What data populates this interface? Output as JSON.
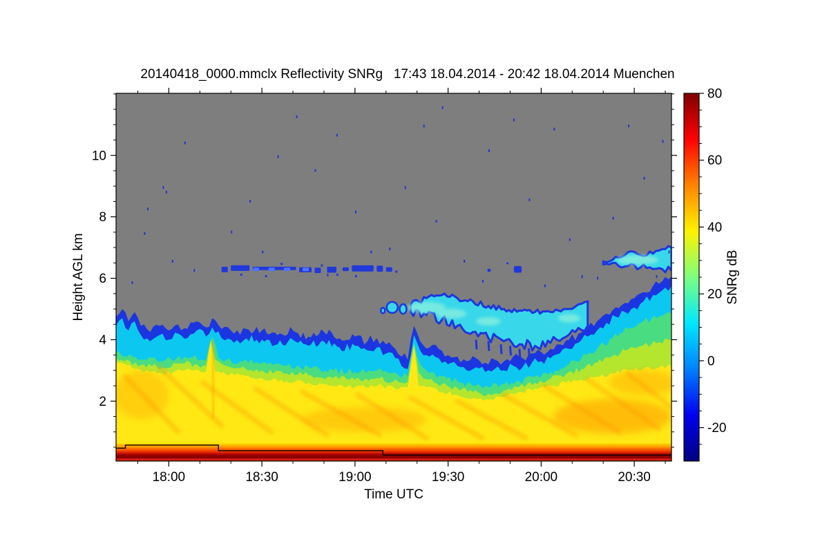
{
  "chart_data": {
    "type": "heatmap",
    "title": "20140418_0000.mmclx Reflectivity SNRg   17:43 18.04.2014 - 20:42 18.04.2014 Muenchen",
    "xlabel": "Time UTC",
    "ylabel": "Height AGL km",
    "legend_position": "right-colorbar",
    "grid": false,
    "x_axis": {
      "start_time": "17:43",
      "end_time": "20:42",
      "duration_min": 179,
      "major_ticks": [
        {
          "label": "18:00",
          "min": 17
        },
        {
          "label": "18:30",
          "min": 47
        },
        {
          "label": "19:00",
          "min": 77
        },
        {
          "label": "19:30",
          "min": 107
        },
        {
          "label": "20:00",
          "min": 137
        },
        {
          "label": "20:30",
          "min": 167
        }
      ],
      "minor_tick_minutes": [
        7,
        27,
        37,
        57,
        67,
        87,
        97,
        117,
        127,
        147,
        157,
        177
      ]
    },
    "y_axis": {
      "range_km": [
        0.05,
        12.02
      ],
      "major_ticks": [
        2,
        4,
        6,
        8,
        10
      ],
      "minor_step_km": 0.5
    },
    "colorbar": {
      "label": "SNRg dB",
      "range_db": [
        -30,
        80
      ],
      "major_ticks": [
        80,
        60,
        40,
        20,
        0,
        -20
      ],
      "minor_step_db": 5,
      "colormap": "jet",
      "stops_top_to_bottom": [
        {
          "o": 0.0,
          "c": "#7f0000"
        },
        {
          "o": 0.125,
          "c": "#ff0000"
        },
        {
          "o": 0.25,
          "c": "#ff8400"
        },
        {
          "o": 0.375,
          "c": "#fff200"
        },
        {
          "o": 0.5,
          "c": "#7dff7d"
        },
        {
          "o": 0.625,
          "c": "#00e8ff"
        },
        {
          "o": 0.75,
          "c": "#0080ff"
        },
        {
          "o": 0.875,
          "c": "#0000f0"
        },
        {
          "o": 1.0,
          "c": "#00007f"
        }
      ]
    },
    "colors": {
      "no_signal_gray": "#7e7e7e",
      "fringe_blue": "#1b36e0",
      "cyan": "#0cc8f0",
      "green": "#4adc80",
      "yellow_green": "#b4e62e",
      "yellow": "#ffe814",
      "orange_wash": "#ff9400",
      "streak_blue": "#2038dc",
      "streak_blue_bright": "#4e74ff",
      "speck_blue": "#2334d0",
      "upper_band_cyan": "#38d8ea",
      "upper_band_core": "#8df0dc",
      "surface_line": "#000000",
      "axis": "#000000"
    },
    "bottom_band": {
      "top_km": 0.62,
      "gradient_top_to_bottom": [
        {
          "o": 0.0,
          "c": "#ffd000"
        },
        {
          "o": 0.17,
          "c": "#ffa400"
        },
        {
          "o": 0.3,
          "c": "#ff6a00"
        },
        {
          "o": 0.45,
          "c": "#f03800"
        },
        {
          "o": 0.55,
          "c": "#cc1400"
        },
        {
          "o": 0.64,
          "c": "#a00000"
        },
        {
          "o": 0.72,
          "c": "#8a0000"
        },
        {
          "o": 0.82,
          "c": "#860000"
        },
        {
          "o": 0.86,
          "c": "#c41414"
        },
        {
          "o": 0.92,
          "c": "#e01c14"
        },
        {
          "o": 1.0,
          "c": "#c83408"
        }
      ]
    },
    "echo_top_km": [
      [
        0,
        4.75
      ],
      [
        2,
        5.0
      ],
      [
        4,
        4.6
      ],
      [
        6,
        4.9
      ],
      [
        8,
        4.45
      ],
      [
        11,
        4.25
      ],
      [
        14,
        4.45
      ],
      [
        17,
        4.3
      ],
      [
        20,
        4.5
      ],
      [
        23,
        4.35
      ],
      [
        26,
        4.6
      ],
      [
        29,
        4.4
      ],
      [
        31,
        4.7
      ],
      [
        34,
        4.35
      ],
      [
        38,
        4.2
      ],
      [
        42,
        4.35
      ],
      [
        47,
        4.3
      ],
      [
        52,
        4.15
      ],
      [
        57,
        4.3
      ],
      [
        62,
        4.1
      ],
      [
        67,
        4.25
      ],
      [
        72,
        4.05
      ],
      [
        77,
        4.1
      ],
      [
        81,
        3.95
      ],
      [
        84,
        4.05
      ],
      [
        87,
        3.85
      ],
      [
        90,
        3.7
      ],
      [
        92,
        3.45
      ],
      [
        94,
        3.35
      ],
      [
        96,
        4.45
      ],
      [
        98,
        3.95
      ],
      [
        101,
        3.75
      ],
      [
        104,
        3.7
      ],
      [
        107,
        3.5
      ],
      [
        110,
        3.45
      ],
      [
        113,
        3.3
      ],
      [
        116,
        3.4
      ],
      [
        119,
        3.25
      ],
      [
        122,
        3.35
      ],
      [
        125,
        3.3
      ],
      [
        128,
        3.45
      ],
      [
        131,
        3.4
      ],
      [
        134,
        3.55
      ],
      [
        137,
        3.6
      ],
      [
        140,
        3.7
      ],
      [
        143,
        3.85
      ],
      [
        146,
        4.0
      ],
      [
        149,
        4.2
      ],
      [
        152,
        4.4
      ],
      [
        155,
        4.6
      ],
      [
        158,
        4.85
      ],
      [
        161,
        5.05
      ],
      [
        164,
        5.2
      ],
      [
        167,
        5.35
      ],
      [
        170,
        5.55
      ],
      [
        173,
        5.75
      ],
      [
        176,
        5.9
      ],
      [
        179,
        6.05
      ]
    ],
    "cyan_offset_km": 0.3,
    "green_top_km": [
      [
        0,
        3.6
      ],
      [
        8,
        3.35
      ],
      [
        15,
        3.3
      ],
      [
        22,
        3.45
      ],
      [
        29,
        3.35
      ],
      [
        31,
        4.1
      ],
      [
        33,
        3.4
      ],
      [
        40,
        3.3
      ],
      [
        47,
        3.25
      ],
      [
        55,
        3.15
      ],
      [
        62,
        3.1
      ],
      [
        70,
        3.0
      ],
      [
        77,
        2.95
      ],
      [
        84,
        3.0
      ],
      [
        88,
        2.9
      ],
      [
        91,
        2.85
      ],
      [
        94,
        2.8
      ],
      [
        96,
        3.9
      ],
      [
        98,
        3.2
      ],
      [
        100,
        3.0
      ],
      [
        105,
        2.8
      ],
      [
        110,
        2.65
      ],
      [
        115,
        2.5
      ],
      [
        120,
        2.45
      ],
      [
        125,
        2.55
      ],
      [
        130,
        2.65
      ],
      [
        135,
        2.8
      ],
      [
        140,
        2.95
      ],
      [
        145,
        3.15
      ],
      [
        150,
        3.4
      ],
      [
        155,
        3.7
      ],
      [
        160,
        4.05
      ],
      [
        165,
        4.35
      ],
      [
        170,
        4.6
      ],
      [
        175,
        4.75
      ],
      [
        179,
        4.85
      ]
    ],
    "yellow_top_km": [
      [
        0,
        3.25
      ],
      [
        8,
        3.0
      ],
      [
        15,
        2.9
      ],
      [
        22,
        3.0
      ],
      [
        29,
        2.95
      ],
      [
        30.5,
        4.0
      ],
      [
        32,
        2.95
      ],
      [
        40,
        2.85
      ],
      [
        47,
        2.75
      ],
      [
        55,
        2.65
      ],
      [
        62,
        2.6
      ],
      [
        70,
        2.5
      ],
      [
        77,
        2.45
      ],
      [
        84,
        2.5
      ],
      [
        91,
        2.4
      ],
      [
        94,
        2.45
      ],
      [
        96,
        3.8
      ],
      [
        97.5,
        2.5
      ],
      [
        100,
        2.45
      ],
      [
        105,
        2.3
      ],
      [
        110,
        2.2
      ],
      [
        115,
        2.1
      ],
      [
        120,
        2.05
      ],
      [
        125,
        2.15
      ],
      [
        130,
        2.3
      ],
      [
        135,
        2.4
      ],
      [
        140,
        2.5
      ],
      [
        145,
        2.6
      ],
      [
        150,
        2.7
      ],
      [
        155,
        2.8
      ],
      [
        160,
        2.9
      ],
      [
        165,
        3.0
      ],
      [
        170,
        3.05
      ],
      [
        175,
        3.1
      ],
      [
        179,
        3.15
      ]
    ],
    "upper_band": {
      "top_km": [
        [
          95,
          5.15
        ],
        [
          100,
          5.35
        ],
        [
          105,
          5.45
        ],
        [
          110,
          5.35
        ],
        [
          115,
          5.25
        ],
        [
          120,
          5.1
        ],
        [
          125,
          5.0
        ],
        [
          130,
          4.95
        ],
        [
          135,
          4.9
        ],
        [
          140,
          4.9
        ],
        [
          145,
          5.0
        ],
        [
          149,
          5.15
        ],
        [
          152,
          5.25
        ]
      ],
      "bottom_km": [
        [
          95,
          4.9
        ],
        [
          100,
          4.8
        ],
        [
          105,
          4.65
        ],
        [
          110,
          4.45
        ],
        [
          115,
          4.25
        ],
        [
          120,
          4.05
        ],
        [
          125,
          3.95
        ],
        [
          130,
          3.85
        ],
        [
          135,
          3.8
        ],
        [
          140,
          3.9
        ],
        [
          144,
          4.05
        ],
        [
          148,
          4.25
        ],
        [
          152,
          4.45
        ]
      ],
      "cores": [
        [
          100,
          5.05,
          28,
          8
        ],
        [
          108,
          4.85,
          22,
          7
        ],
        [
          120,
          4.6,
          18,
          6
        ],
        [
          146,
          4.7,
          16,
          6
        ]
      ],
      "lead_blobs": [
        [
          89,
          5.05,
          8,
          8
        ],
        [
          92.5,
          5.0,
          5,
          7
        ],
        [
          86,
          4.95,
          3,
          4
        ]
      ],
      "hang_streaks": [
        [
          116,
          4.0
        ],
        [
          120,
          3.95
        ],
        [
          124,
          3.85
        ],
        [
          127,
          3.8
        ],
        [
          130,
          3.7
        ],
        [
          133,
          3.72
        ]
      ]
    },
    "top_right_band": {
      "top_km": [
        [
          157,
          6.55
        ],
        [
          161,
          6.7
        ],
        [
          165,
          6.85
        ],
        [
          169,
          6.75
        ],
        [
          173,
          6.8
        ],
        [
          176,
          6.95
        ],
        [
          179,
          7.0
        ]
      ],
      "bottom_km": [
        [
          157,
          6.45
        ],
        [
          161,
          6.5
        ],
        [
          165,
          6.4
        ],
        [
          169,
          6.35
        ],
        [
          173,
          6.3
        ],
        [
          176,
          6.3
        ],
        [
          179,
          6.25
        ]
      ],
      "core": [
        168,
        6.6,
        30,
        7
      ]
    },
    "mid_level_streak": {
      "km_center": 6.3,
      "segments_min": [
        [
          34,
          36
        ],
        [
          37,
          43
        ],
        [
          44,
          58
        ],
        [
          59,
          63
        ],
        [
          64,
          66
        ],
        [
          68,
          71
        ],
        [
          73,
          75
        ],
        [
          76,
          83
        ],
        [
          84,
          86
        ],
        [
          87,
          89
        ]
      ],
      "bright_spots_min": [
        45,
        50,
        55,
        61
      ],
      "dots": [
        [
          40,
          6.15
        ],
        [
          48,
          6.1
        ],
        [
          53,
          6.5
        ],
        [
          66,
          6.45
        ],
        [
          71,
          6.15
        ],
        [
          77,
          6.1
        ],
        [
          90,
          6.25
        ]
      ],
      "blobs": [
        [
          120,
          6.28,
          3,
          3
        ],
        [
          129,
          6.33,
          7,
          6
        ],
        [
          126,
          6.5,
          2,
          2
        ]
      ]
    },
    "orange_streaks": [
      [
        3,
        2.8,
        20,
        1.0
      ],
      [
        14,
        3.1,
        34,
        1.2
      ],
      [
        28,
        2.6,
        50,
        1.0
      ],
      [
        31,
        3.9,
        31.5,
        1.5
      ],
      [
        45,
        2.4,
        68,
        0.9
      ],
      [
        60,
        2.3,
        85,
        0.9
      ],
      [
        78,
        2.2,
        100,
        0.8
      ],
      [
        95,
        2.1,
        118,
        0.8
      ],
      [
        110,
        2.0,
        132,
        0.8
      ],
      [
        125,
        2.2,
        148,
        0.9
      ],
      [
        138,
        2.5,
        162,
        1.0
      ],
      [
        152,
        2.7,
        175,
        1.1
      ],
      [
        165,
        2.9,
        179,
        1.8
      ]
    ],
    "orange_washes": [
      [
        160,
        1.5,
        85,
        25,
        0.5
      ],
      [
        8,
        2.2,
        40,
        35,
        0.3
      ],
      [
        80,
        1.4,
        90,
        18,
        0.35
      ],
      [
        170,
        2.6,
        50,
        18,
        0.35
      ]
    ],
    "surface_line_km": [
      [
        0,
        0.47
      ],
      [
        3,
        0.47
      ],
      [
        3,
        0.57
      ],
      [
        33,
        0.57
      ],
      [
        33,
        0.39
      ],
      [
        86,
        0.39
      ],
      [
        86,
        0.245
      ],
      [
        179,
        0.245
      ]
    ],
    "specks": [
      [
        5,
        5.9
      ],
      [
        9,
        7.5
      ],
      [
        15,
        9.0
      ],
      [
        16,
        8.85
      ],
      [
        10,
        8.3
      ],
      [
        22,
        10.45
      ],
      [
        18,
        6.6
      ],
      [
        25,
        6.3
      ],
      [
        37,
        7.55
      ],
      [
        43,
        8.55
      ],
      [
        47,
        6.9
      ],
      [
        52,
        10.0
      ],
      [
        58,
        11.3
      ],
      [
        64,
        9.55
      ],
      [
        68,
        6.15
      ],
      [
        71,
        10.7
      ],
      [
        77,
        8.2
      ],
      [
        82,
        6.9
      ],
      [
        88,
        7.0
      ],
      [
        93,
        9.0
      ],
      [
        99,
        11.0
      ],
      [
        103,
        7.9
      ],
      [
        105,
        11.6
      ],
      [
        112,
        6.6
      ],
      [
        118,
        5.95
      ],
      [
        120,
        10.2
      ],
      [
        128,
        11.2
      ],
      [
        133,
        8.6
      ],
      [
        138,
        5.8
      ],
      [
        141,
        10.9
      ],
      [
        146,
        7.3
      ],
      [
        150,
        6.1
      ],
      [
        155,
        6.05
      ],
      [
        160,
        8.0
      ],
      [
        165,
        11.0
      ],
      [
        170,
        9.3
      ],
      [
        174,
        6.1
      ],
      [
        176,
        10.5
      ],
      [
        178,
        6.9
      ]
    ]
  }
}
